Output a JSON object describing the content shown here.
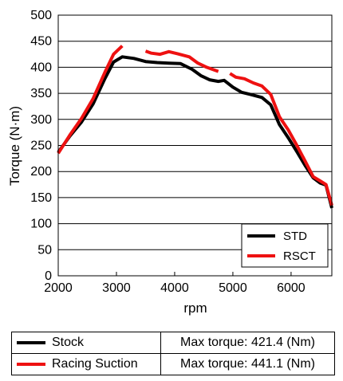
{
  "chart_data": {
    "type": "line",
    "xlabel": "rpm",
    "ylabel": "Torque (N·m)",
    "xlim": [
      2000,
      6700
    ],
    "ylim": [
      0,
      500
    ],
    "x_ticks": [
      "2000",
      "3000",
      "4000",
      "5000",
      "6000"
    ],
    "y_ticks": [
      "0",
      "50",
      "100",
      "150",
      "200",
      "250",
      "300",
      "350",
      "400",
      "450",
      "500"
    ],
    "grid": "horizontal",
    "legend_position": "bottom-right",
    "series": [
      {
        "name": "STD",
        "color": "#000000",
        "segments": [
          [
            [
              2000,
              237
            ],
            [
              2200,
              268
            ],
            [
              2400,
              295
            ],
            [
              2600,
              330
            ],
            [
              2800,
              378
            ],
            [
              2950,
              410
            ],
            [
              3100,
              420
            ],
            [
              3300,
              417
            ],
            [
              3500,
              411
            ],
            [
              3700,
              409
            ],
            [
              3900,
              408
            ],
            [
              4100,
              407
            ],
            [
              4300,
              396
            ],
            [
              4450,
              384
            ],
            [
              4600,
              376
            ],
            [
              4750,
              373
            ],
            [
              4850,
              375
            ],
            [
              5000,
              362
            ],
            [
              5150,
              352
            ],
            [
              5300,
              348
            ],
            [
              5500,
              342
            ],
            [
              5650,
              328
            ],
            [
              5800,
              290
            ],
            [
              5950,
              265
            ],
            [
              6100,
              238
            ],
            [
              6250,
              210
            ],
            [
              6380,
              188
            ],
            [
              6500,
              178
            ],
            [
              6600,
              174
            ],
            [
              6700,
              130
            ]
          ]
        ]
      },
      {
        "name": "RSCT",
        "color": "#ee1111",
        "segments": [
          [
            [
              2000,
              235
            ],
            [
              2200,
              270
            ],
            [
              2400,
              302
            ],
            [
              2600,
              340
            ],
            [
              2800,
              390
            ],
            [
              2950,
              425
            ],
            [
              3100,
              441
            ]
          ],
          [
            [
              3500,
              431
            ],
            [
              3600,
              427
            ],
            [
              3750,
              425
            ],
            [
              3900,
              430
            ],
            [
              4050,
              426
            ],
            [
              4250,
              420
            ],
            [
              4400,
              408
            ],
            [
              4550,
              400
            ],
            [
              4750,
              392
            ]
          ],
          [
            [
              4950,
              388
            ],
            [
              5050,
              381
            ],
            [
              5200,
              378
            ],
            [
              5350,
              370
            ],
            [
              5500,
              364
            ],
            [
              5650,
              348
            ],
            [
              5800,
              305
            ],
            [
              5950,
              280
            ],
            [
              6100,
              250
            ],
            [
              6250,
              218
            ],
            [
              6380,
              190
            ],
            [
              6500,
              182
            ],
            [
              6600,
              175
            ],
            [
              6700,
              135
            ]
          ]
        ]
      }
    ]
  },
  "table": {
    "rows": [
      {
        "label": "Stock",
        "color": "#000000",
        "value": "Max torque: 421.4 (Nm)"
      },
      {
        "label": "Racing Suction",
        "color": "#ee1111",
        "value": "Max torque: 441.1 (Nm)"
      }
    ]
  }
}
